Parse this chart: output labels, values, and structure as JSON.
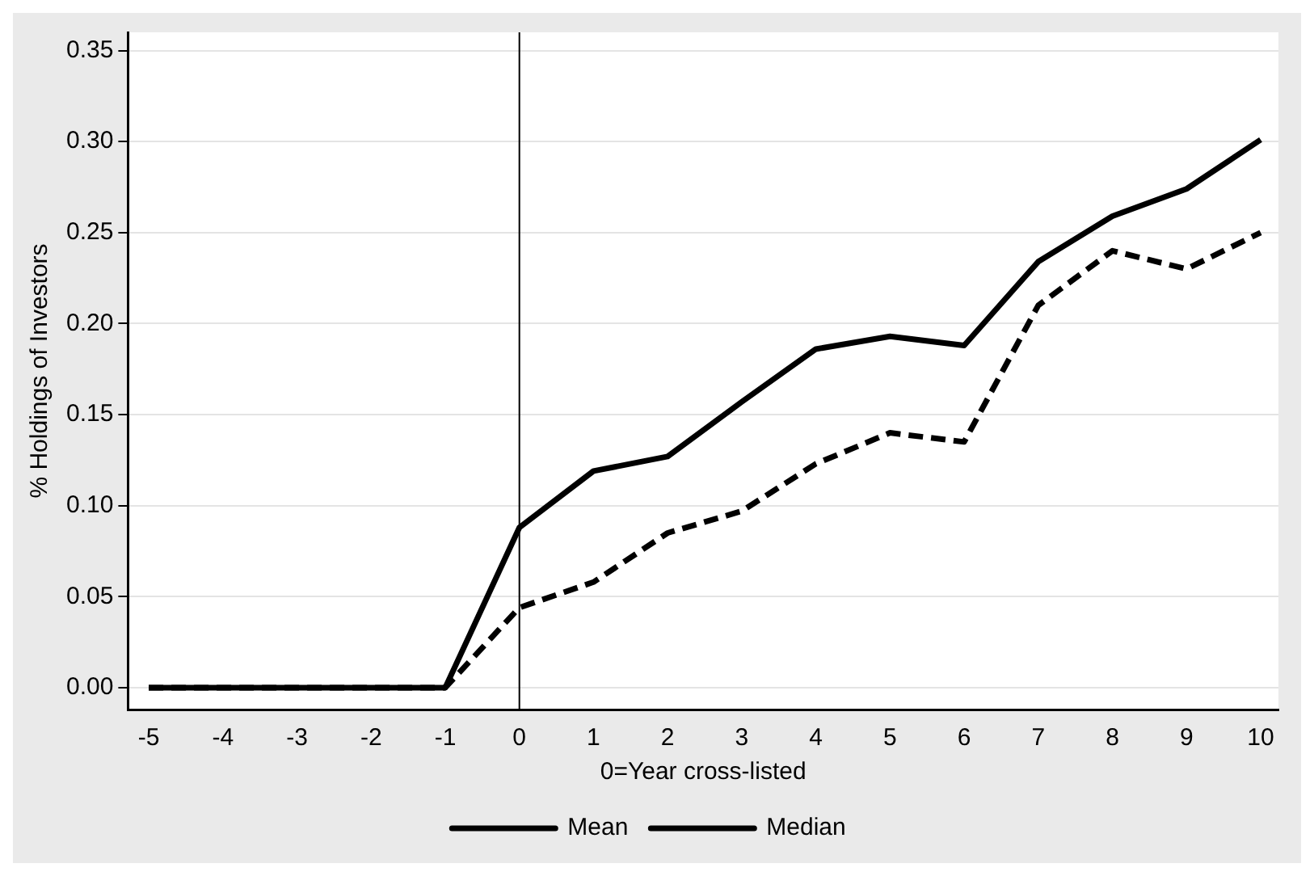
{
  "chart_data": {
    "type": "line",
    "xlabel": "0=Year cross-listed",
    "ylabel": "% Holdings of Investors",
    "x": [
      -5,
      -4,
      -3,
      -2,
      -1,
      0,
      1,
      2,
      3,
      4,
      5,
      6,
      7,
      8,
      9,
      10
    ],
    "series": [
      {
        "name": "Mean",
        "color": "#000000",
        "line_style": "solid",
        "values": [
          0,
          0,
          0,
          0,
          0,
          0.088,
          0.119,
          0.127,
          0.157,
          0.186,
          0.193,
          0.188,
          0.234,
          0.259,
          0.274,
          0.301
        ]
      },
      {
        "name": "Median",
        "color": "#000000",
        "line_style": "dashed",
        "values": [
          0,
          0,
          0,
          0,
          0,
          0.044,
          0.058,
          0.085,
          0.097,
          0.123,
          0.14,
          0.135,
          0.21,
          0.24,
          0.23,
          0.25
        ]
      }
    ],
    "xlim": [
      -5.28,
      10.24
    ],
    "xticks": [
      -5,
      -4,
      -3,
      -2,
      -1,
      0,
      1,
      2,
      3,
      4,
      5,
      6,
      7,
      8,
      9,
      10
    ],
    "ylim": [
      -0.012,
      0.36
    ],
    "yticks": [
      {
        "value": 0,
        "label": "0.00"
      },
      {
        "value": 0.05,
        "label": "0.05"
      },
      {
        "value": 0.1,
        "label": "0.10"
      },
      {
        "value": 0.15,
        "label": "0.15"
      },
      {
        "value": 0.2,
        "label": "0.20"
      },
      {
        "value": 0.25,
        "label": "0.25"
      },
      {
        "value": 0.3,
        "label": "0.30"
      },
      {
        "value": 0.35,
        "label": "0.35"
      }
    ],
    "ref_lines": [
      {
        "axis": "x",
        "value": 0,
        "color": "#000000"
      }
    ],
    "grid": "y",
    "legend": "bottom",
    "marker": "none"
  }
}
